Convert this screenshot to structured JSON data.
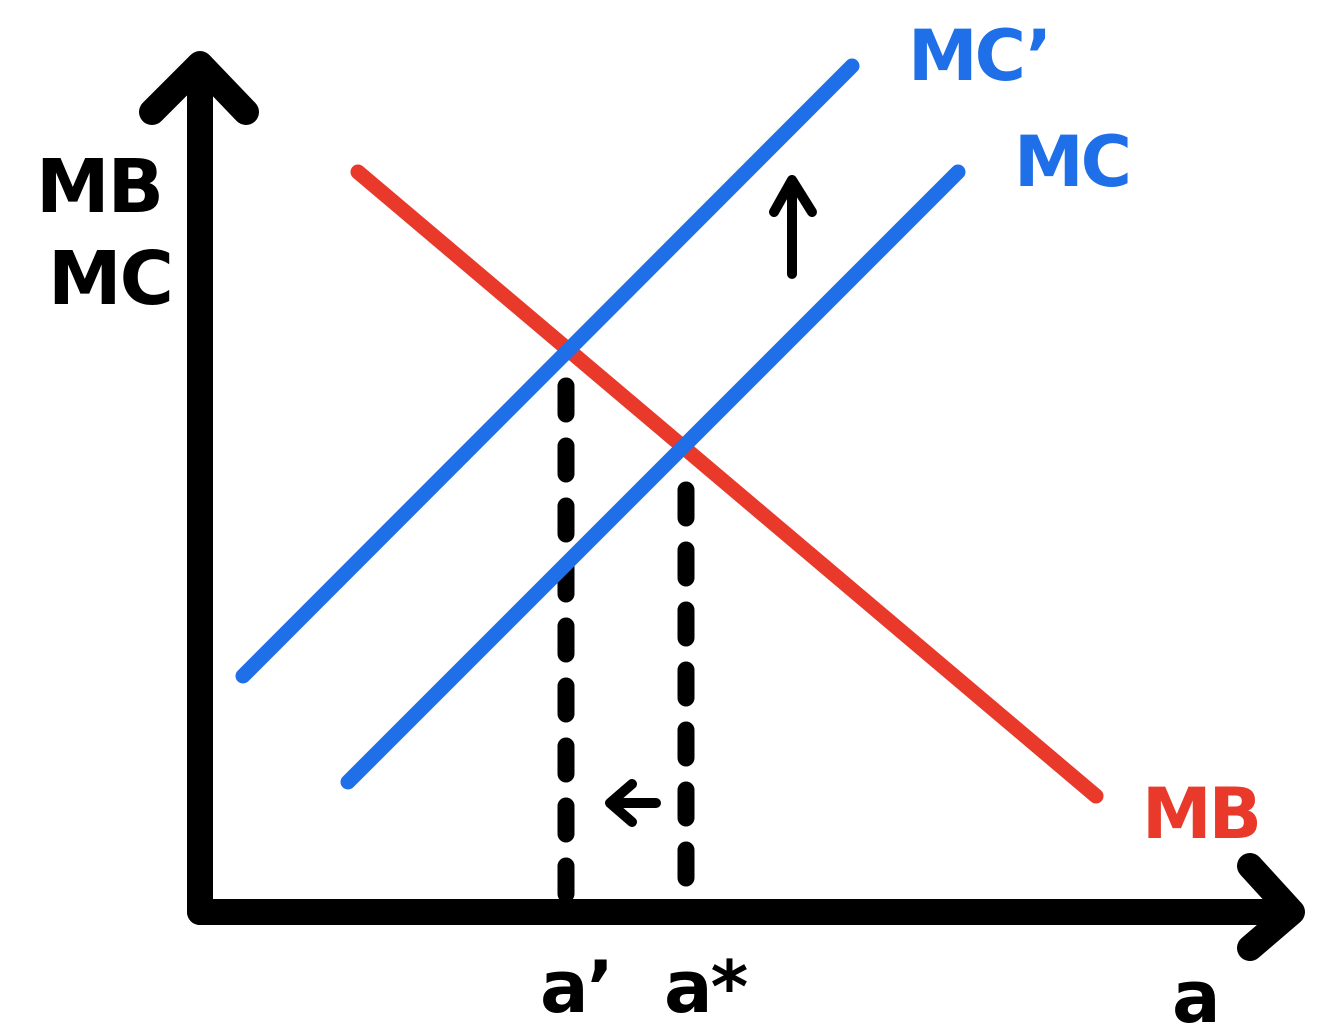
{
  "diagram": {
    "y_axis_label_line1": "MB",
    "y_axis_label_line2": "MC",
    "x_axis_label": "a",
    "curves": {
      "mb": {
        "label": "MB",
        "color": "#e8392a"
      },
      "mc": {
        "label": "MC",
        "color": "#1f6fe8"
      },
      "mc_shifted": {
        "label": "MC’",
        "color": "#1f6fe8"
      }
    },
    "ticks": {
      "a_prime": "a’",
      "a_star": "a*"
    },
    "ink_color": "#000000",
    "shift_up_arrow_icon": "arrow-up-icon",
    "shift_left_arrow_icon": "arrow-left-icon"
  }
}
